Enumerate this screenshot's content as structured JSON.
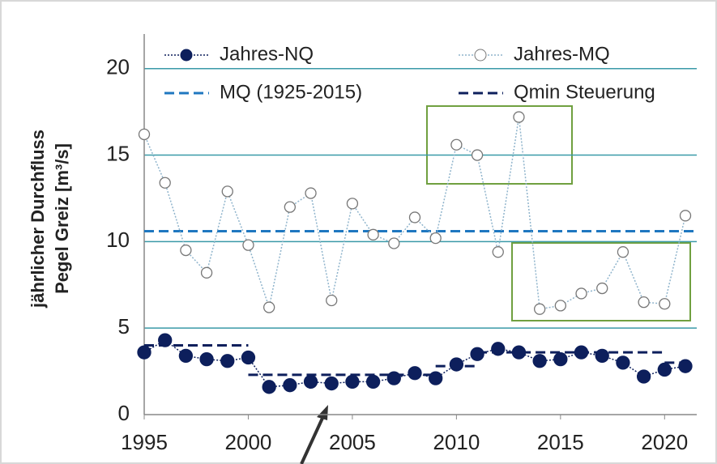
{
  "chart_data": {
    "type": "line",
    "y_label": [
      "jährlicher Durchfluss",
      "Pegel Greiz [m³/s]"
    ],
    "x": [
      1995,
      1996,
      1997,
      1998,
      1999,
      2000,
      2001,
      2002,
      2003,
      2004,
      2005,
      2006,
      2007,
      2008,
      2009,
      2010,
      2011,
      2012,
      2013,
      2014,
      2015,
      2016,
      2017,
      2018,
      2019,
      2020,
      2021
    ],
    "series": [
      {
        "name": "Jahres-NQ",
        "color": "#0d1f5c",
        "marker_fill": "#0d1f5c",
        "values": [
          3.6,
          4.3,
          3.4,
          3.2,
          3.1,
          3.3,
          1.6,
          1.7,
          1.9,
          1.8,
          1.9,
          1.9,
          2.1,
          2.4,
          2.1,
          2.9,
          3.5,
          3.8,
          3.6,
          3.1,
          3.2,
          3.6,
          3.4,
          3.0,
          2.2,
          2.6,
          2.8
        ]
      },
      {
        "name": "Jahres-MQ",
        "color": "#8fb4cc",
        "marker_fill": "#ffffff",
        "values": [
          16.2,
          13.4,
          9.5,
          8.2,
          12.9,
          9.8,
          6.2,
          12.0,
          12.8,
          6.6,
          12.2,
          10.4,
          9.9,
          11.4,
          10.2,
          15.6,
          15.0,
          9.4,
          17.2,
          6.1,
          6.3,
          7.0,
          7.3,
          9.4,
          6.5,
          6.4,
          11.5
        ]
      }
    ],
    "reference_line": {
      "name": "MQ (1925-2015)",
      "value": 10.6,
      "color": "#1f77c0"
    },
    "steps": {
      "name": "Qmin Steuerung",
      "color": "#0d1f5c",
      "segments": [
        {
          "from": 1995,
          "to": 2000,
          "value": 4.0
        },
        {
          "from": 2000,
          "to": 2009,
          "value": 2.3
        },
        {
          "from": 2009,
          "to": 2011,
          "value": 2.8
        },
        {
          "from": 2011,
          "to": 2020,
          "value": 3.6
        },
        {
          "from": 2020,
          "to": 2021,
          "value": 3.0
        }
      ]
    },
    "xlim": [
      1995,
      2021
    ],
    "ylim": [
      0,
      22
    ],
    "xticks": [
      1995,
      2000,
      2005,
      2010,
      2015,
      2020
    ],
    "yticks": [
      0,
      5,
      10,
      15,
      20
    ],
    "grid": true,
    "grid_color": "#3a9aa8"
  }
}
